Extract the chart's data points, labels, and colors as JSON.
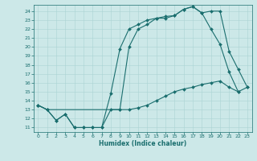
{
  "xlabel": "Humidex (Indice chaleur)",
  "bg_color": "#cce8e8",
  "grid_color": "#aad4d4",
  "line_color": "#1a6e6e",
  "xlim": [
    -0.5,
    23.5
  ],
  "ylim": [
    10.5,
    24.7
  ],
  "xticks": [
    0,
    1,
    2,
    3,
    4,
    5,
    6,
    7,
    8,
    9,
    10,
    11,
    12,
    13,
    14,
    15,
    16,
    17,
    18,
    19,
    20,
    21,
    22,
    23
  ],
  "yticks": [
    11,
    12,
    13,
    14,
    15,
    16,
    17,
    18,
    19,
    20,
    21,
    22,
    23,
    24
  ],
  "line_min_x": [
    0,
    1,
    2,
    3,
    4,
    5,
    6,
    7,
    8,
    9,
    10,
    11,
    12,
    13,
    14,
    15,
    16,
    17,
    18,
    19,
    20,
    21,
    22,
    23
  ],
  "line_min_y": [
    13.5,
    13.0,
    11.8,
    12.5,
    11.0,
    11.0,
    11.0,
    11.0,
    13.0,
    13.0,
    13.0,
    13.2,
    13.5,
    14.0,
    14.5,
    15.0,
    15.3,
    15.5,
    15.8,
    16.0,
    16.2,
    15.5,
    15.0,
    15.5
  ],
  "line_mid_x": [
    0,
    1,
    2,
    3,
    4,
    5,
    6,
    7,
    8,
    9,
    10,
    11,
    12,
    13,
    14,
    15,
    16,
    17,
    18,
    19,
    20,
    21,
    22
  ],
  "line_mid_y": [
    13.5,
    13.0,
    11.8,
    12.5,
    11.0,
    11.0,
    11.0,
    11.0,
    14.8,
    19.8,
    22.0,
    22.5,
    23.0,
    23.2,
    23.4,
    23.5,
    24.2,
    24.5,
    23.8,
    22.0,
    20.3,
    17.2,
    15.0
  ],
  "line_top_x": [
    0,
    1,
    9,
    10,
    11,
    12,
    13,
    14,
    15,
    16,
    17,
    18,
    19,
    20,
    21,
    22,
    23
  ],
  "line_top_y": [
    13.5,
    13.0,
    13.0,
    20.0,
    22.0,
    22.5,
    23.2,
    23.2,
    23.5,
    24.2,
    24.5,
    23.8,
    24.0,
    24.0,
    19.5,
    17.5,
    15.5
  ]
}
